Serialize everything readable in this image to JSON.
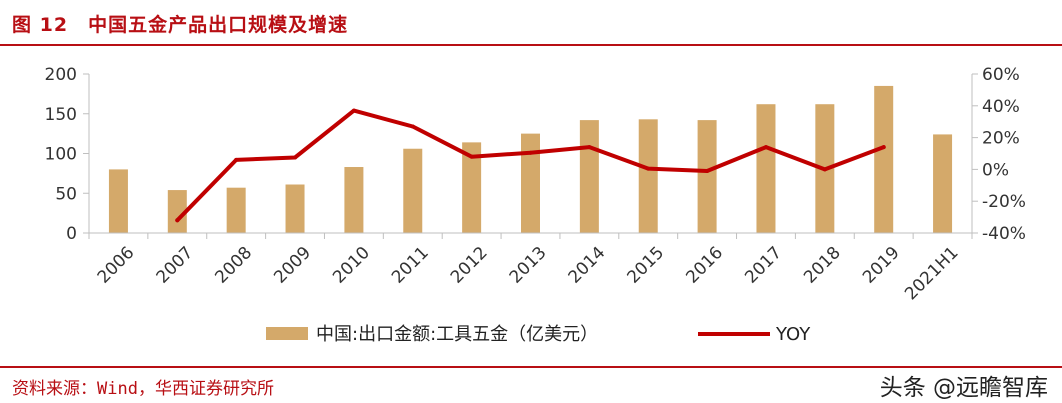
{
  "figure": {
    "number": "图 12",
    "title": "中国五金产品出口规模及增速",
    "source": "资料来源：Wind，华西证券研究所",
    "watermark": "头条 @远瞻智库"
  },
  "colors": {
    "accent": "#b80f14",
    "bar": "#d4a96a",
    "line": "#c00000",
    "axis": "#bfbfbf"
  },
  "chart_data": {
    "type": "bar",
    "title": "",
    "xlabel": "",
    "ylabel": "",
    "categories": [
      "2006",
      "2007",
      "2008",
      "2009",
      "2010",
      "2011",
      "2012",
      "2013",
      "2014",
      "2015",
      "2016",
      "2017",
      "2018",
      "2019",
      "2021H1"
    ],
    "ylim": [
      0,
      200
    ],
    "y_ticks": [
      "0",
      "50",
      "100",
      "150",
      "200"
    ],
    "y2lim": [
      -40,
      60
    ],
    "y2_ticks": [
      "-40%",
      "-20%",
      "0%",
      "20%",
      "40%",
      "60%"
    ],
    "grid": false,
    "legend_position": "bottom",
    "series": [
      {
        "name": "中国:出口金额:工具五金（亿美元）",
        "type": "bar",
        "axis": "left",
        "values": [
          80,
          54,
          57,
          61,
          83,
          106,
          114,
          125,
          142,
          143,
          142,
          162,
          162,
          185,
          124
        ]
      },
      {
        "name": "YOY",
        "type": "line",
        "axis": "right",
        "unit": "%",
        "values": [
          null,
          -32,
          6,
          7.5,
          37,
          27,
          8,
          10.5,
          14,
          0.5,
          -1,
          14,
          0,
          14,
          null
        ]
      }
    ]
  }
}
